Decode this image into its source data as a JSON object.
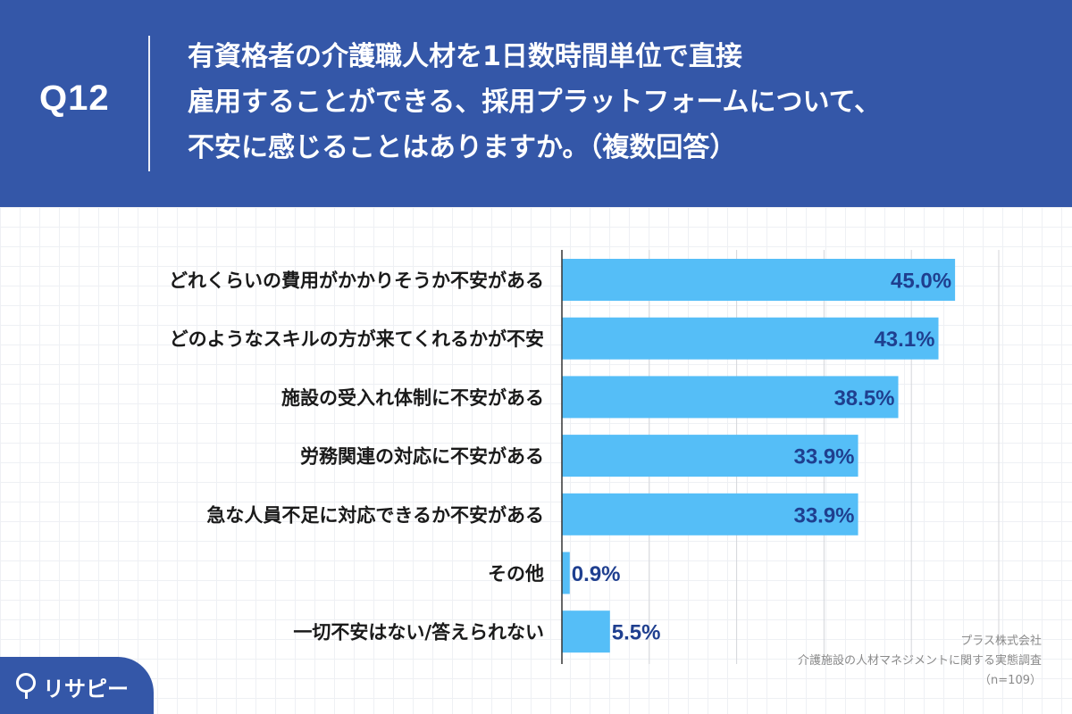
{
  "header": {
    "qnum": "Q12",
    "title_lines": [
      "有資格者の介護職人材を1日数時間単位で直接",
      "雇用することができる、採用プラットフォームについて、",
      "不安に感じることはありますか。（複数回答）"
    ]
  },
  "chart_data": {
    "type": "bar",
    "orientation": "horizontal",
    "categories": [
      "どれくらいの費用がかかりそうか不安がある",
      "どのようなスキルの方が来てくれるかが不安",
      "施設の受入れ体制に不安がある",
      "労務関連の対応に不安がある",
      "急な人員不足に対応できるか不安がある",
      "その他",
      "一切不安はない/答えられない"
    ],
    "values": [
      45.0,
      43.1,
      38.5,
      33.9,
      33.9,
      0.9,
      5.5
    ],
    "value_labels": [
      "45.0%",
      "43.1%",
      "38.5%",
      "33.9%",
      "33.9%",
      "0.9%",
      "5.5%"
    ],
    "xlim": [
      0,
      50
    ],
    "grid": true,
    "bar_color": "#55bef7",
    "value_label_color": "#1f3f8f"
  },
  "source": {
    "company": "プラス株式会社",
    "survey": "介護施設の人材マネジメントに関する実態調査",
    "n": "（n=109）"
  },
  "logo": {
    "text": "リサピー",
    "icon": "pin-icon"
  },
  "colors": {
    "background": "#3457a8",
    "panel": "#ffffff"
  }
}
